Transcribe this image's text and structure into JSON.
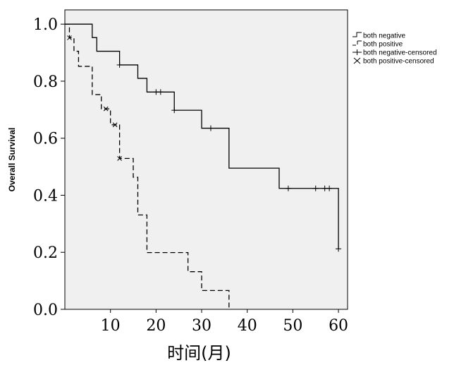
{
  "chart_data": {
    "type": "line",
    "title": "",
    "xlabel": "时间(月)",
    "ylabel": "Overall Survival",
    "xlim": [
      0,
      62
    ],
    "ylim": [
      0,
      1.05
    ],
    "x_ticks": [
      10,
      20,
      30,
      40,
      50,
      60
    ],
    "x_tick_labels": [
      "10",
      "20",
      "30",
      "40",
      "50",
      "60"
    ],
    "y_ticks": [
      0,
      0.2,
      0.4,
      0.6,
      0.8,
      1.0
    ],
    "y_tick_labels": [
      "0.0",
      "0.2",
      "0.4",
      "0.6",
      "0.8",
      "1.0"
    ],
    "grid": false,
    "legend_position": "right",
    "legend": [
      {
        "label": "both negative",
        "marker": "step-solid"
      },
      {
        "label": "both positive",
        "marker": "step-dashed"
      },
      {
        "label": "both negative-censored",
        "marker": "plus"
      },
      {
        "label": "both positive-censored",
        "marker": "x"
      }
    ],
    "series": [
      {
        "style": "solid",
        "color": "#000000",
        "steps": [
          [
            0,
            1.0
          ],
          [
            6,
            0.953
          ],
          [
            7,
            0.905
          ],
          [
            12,
            0.857
          ],
          [
            16,
            0.81
          ],
          [
            18,
            0.762
          ],
          [
            24,
            0.698
          ],
          [
            30,
            0.635
          ],
          [
            36,
            0.495
          ],
          [
            47,
            0.424
          ],
          [
            60,
            0.212
          ]
        ],
        "censored": [
          [
            12,
            0.857
          ],
          [
            20,
            0.762
          ],
          [
            21,
            0.762
          ],
          [
            24,
            0.698
          ],
          [
            32,
            0.635
          ],
          [
            49,
            0.424
          ],
          [
            55,
            0.424
          ],
          [
            57,
            0.424
          ],
          [
            58,
            0.424
          ],
          [
            60,
            0.212
          ]
        ]
      },
      {
        "style": "dashed",
        "color": "#000000",
        "steps": [
          [
            0,
            1.0
          ],
          [
            1,
            0.952
          ],
          [
            2,
            0.905
          ],
          [
            3,
            0.852
          ],
          [
            6,
            0.753
          ],
          [
            8,
            0.703
          ],
          [
            10,
            0.647
          ],
          [
            12,
            0.529
          ],
          [
            15,
            0.463
          ],
          [
            16,
            0.331
          ],
          [
            18,
            0.199
          ],
          [
            27,
            0.132
          ],
          [
            30,
            0.066
          ],
          [
            36,
            0.0
          ]
        ],
        "censored": [
          [
            1,
            0.952
          ],
          [
            9,
            0.703
          ],
          [
            11,
            0.647
          ],
          [
            12,
            0.529
          ]
        ]
      }
    ]
  },
  "colors": {
    "plot_background": "#f0f0f0",
    "axis": "#000000",
    "line": "#000000"
  }
}
